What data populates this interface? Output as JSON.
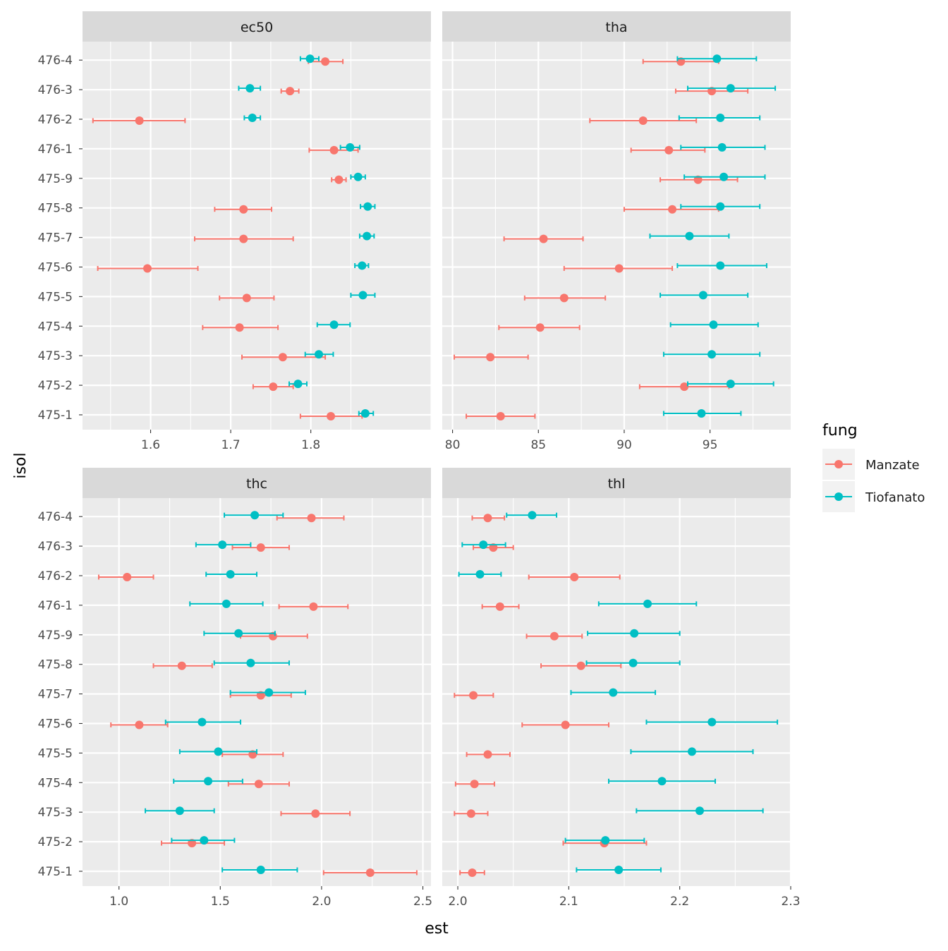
{
  "colors": {
    "Manzate": "#F8766D",
    "Tiofanato": "#00BFC4",
    "panel_bg": "#EBEBEB",
    "strip_bg": "#D9D9D9",
    "grid": "#FFFFFF"
  },
  "axis": {
    "xlabel": "est",
    "ylabel": "isol"
  },
  "legend": {
    "title": "fung",
    "items": [
      "Manzate",
      "Tiofanato"
    ],
    "position": "right"
  },
  "chart_data": {
    "type": "scatter",
    "geometry": "pointrange-horizontal",
    "facets": [
      "ec50",
      "tha",
      "thc",
      "thl"
    ],
    "y_categories": [
      "475-1",
      "475-2",
      "475-3",
      "475-4",
      "475-5",
      "475-6",
      "475-7",
      "475-8",
      "475-9",
      "476-1",
      "476-2",
      "476-3",
      "476-4"
    ],
    "panels": [
      {
        "name": "ec50",
        "xlim": [
          1.515,
          1.95
        ],
        "xticks": [
          "1.6",
          "1.7",
          "1.8"
        ],
        "xtick_values": [
          1.6,
          1.7,
          1.8
        ],
        "series": [
          {
            "name": "Manzate",
            "est": [
              1.825,
              1.753,
              1.765,
              1.711,
              1.72,
              1.596,
              1.716,
              1.716,
              1.835,
              1.829,
              1.586,
              1.774,
              1.818
            ],
            "lo": [
              1.787,
              1.728,
              1.714,
              1.665,
              1.686,
              1.534,
              1.655,
              1.68,
              1.826,
              1.798,
              1.528,
              1.763,
              1.797
            ],
            "hi": [
              1.864,
              1.778,
              1.818,
              1.759,
              1.754,
              1.659,
              1.778,
              1.751,
              1.844,
              1.859,
              1.643,
              1.785,
              1.84
            ]
          },
          {
            "name": "Tiofanato",
            "est": [
              1.868,
              1.784,
              1.81,
              1.829,
              1.865,
              1.864,
              1.87,
              1.871,
              1.859,
              1.849,
              1.727,
              1.724,
              1.799
            ],
            "lo": [
              1.86,
              1.773,
              1.793,
              1.808,
              1.85,
              1.855,
              1.861,
              1.862,
              1.85,
              1.837,
              1.717,
              1.71,
              1.787
            ],
            "hi": [
              1.878,
              1.795,
              1.828,
              1.849,
              1.88,
              1.872,
              1.879,
              1.88,
              1.868,
              1.861,
              1.737,
              1.737,
              1.81
            ]
          }
        ]
      },
      {
        "name": "tha",
        "xlim": [
          79.4,
          99.7
        ],
        "xticks": [
          "80",
          "85",
          "90",
          "95"
        ],
        "xtick_values": [
          80,
          85,
          90,
          95
        ],
        "series": [
          {
            "name": "Manzate",
            "est": [
              82.8,
              93.5,
              82.2,
              85.1,
              86.5,
              89.7,
              85.3,
              92.8,
              94.3,
              92.6,
              91.1,
              95.1,
              93.3
            ],
            "lo": [
              80.8,
              90.9,
              80.1,
              82.7,
              84.2,
              86.5,
              83.0,
              90.0,
              92.1,
              90.4,
              88.0,
              93.0,
              91.1
            ],
            "hi": [
              84.8,
              96.1,
              84.4,
              87.4,
              88.9,
              92.8,
              87.6,
              95.5,
              96.6,
              94.7,
              94.2,
              97.2,
              95.5
            ]
          },
          {
            "name": "Tiofanato",
            "est": [
              94.5,
              96.2,
              95.1,
              95.2,
              94.6,
              95.6,
              93.8,
              95.6,
              95.8,
              95.7,
              95.6,
              96.2,
              95.4
            ],
            "lo": [
              92.3,
              93.7,
              92.3,
              92.7,
              92.1,
              93.1,
              91.5,
              93.3,
              93.5,
              93.3,
              93.2,
              93.7,
              93.1
            ],
            "hi": [
              96.8,
              98.7,
              97.9,
              97.8,
              97.2,
              98.3,
              96.1,
              97.9,
              98.2,
              98.2,
              97.9,
              98.8,
              97.7
            ]
          }
        ]
      },
      {
        "name": "thc",
        "xlim": [
          0.82,
          2.54
        ],
        "xticks": [
          "1.0",
          "1.5",
          "2.0",
          "2.5"
        ],
        "xtick_values": [
          1.0,
          1.5,
          2.0,
          2.5
        ],
        "series": [
          {
            "name": "Manzate",
            "est": [
              2.24,
              1.36,
              1.97,
              1.69,
              1.66,
              1.1,
              1.7,
              1.31,
              1.76,
              1.96,
              1.04,
              1.7,
              1.95
            ],
            "lo": [
              2.01,
              1.21,
              1.8,
              1.54,
              1.51,
              0.96,
              1.55,
              1.17,
              1.6,
              1.79,
              0.9,
              1.56,
              1.78
            ],
            "hi": [
              2.47,
              1.52,
              2.14,
              1.84,
              1.81,
              1.24,
              1.85,
              1.46,
              1.93,
              2.13,
              1.17,
              1.84,
              2.11
            ]
          },
          {
            "name": "Tiofanato",
            "est": [
              1.7,
              1.42,
              1.3,
              1.44,
              1.49,
              1.41,
              1.74,
              1.65,
              1.59,
              1.53,
              1.55,
              1.51,
              1.67
            ],
            "lo": [
              1.51,
              1.26,
              1.13,
              1.27,
              1.3,
              1.23,
              1.55,
              1.47,
              1.42,
              1.35,
              1.43,
              1.38,
              1.52
            ],
            "hi": [
              1.88,
              1.57,
              1.47,
              1.61,
              1.68,
              1.6,
              1.92,
              1.84,
              1.77,
              1.71,
              1.68,
              1.65,
              1.81
            ]
          }
        ]
      },
      {
        "name": "thl",
        "xlim": [
          1.986,
          2.3
        ],
        "xticks": [
          "2.0",
          "2.1",
          "2.2",
          "2.3"
        ],
        "xtick_values": [
          2.0,
          2.1,
          2.2,
          2.3
        ],
        "series": [
          {
            "name": "Manzate",
            "est": [
              2.013,
              2.132,
              2.012,
              2.015,
              2.027,
              2.097,
              2.014,
              2.111,
              2.087,
              2.038,
              2.105,
              2.032,
              2.027
            ],
            "lo": [
              2.002,
              2.095,
              1.997,
              1.998,
              2.008,
              2.058,
              1.997,
              2.075,
              2.062,
              2.022,
              2.064,
              2.014,
              2.013
            ],
            "hi": [
              2.024,
              2.17,
              2.027,
              2.033,
              2.047,
              2.136,
              2.032,
              2.147,
              2.112,
              2.055,
              2.146,
              2.05,
              2.042
            ]
          },
          {
            "name": "Tiofanato",
            "est": [
              2.145,
              2.133,
              2.218,
              2.184,
              2.211,
              2.229,
              2.14,
              2.158,
              2.159,
              2.171,
              2.02,
              2.023,
              2.067
            ],
            "lo": [
              2.107,
              2.097,
              2.161,
              2.136,
              2.156,
              2.17,
              2.102,
              2.116,
              2.117,
              2.127,
              2.001,
              2.004,
              2.044
            ],
            "hi": [
              2.183,
              2.168,
              2.275,
              2.232,
              2.266,
              2.288,
              2.178,
              2.2,
              2.2,
              2.215,
              2.039,
              2.043,
              2.089
            ]
          }
        ]
      }
    ]
  }
}
